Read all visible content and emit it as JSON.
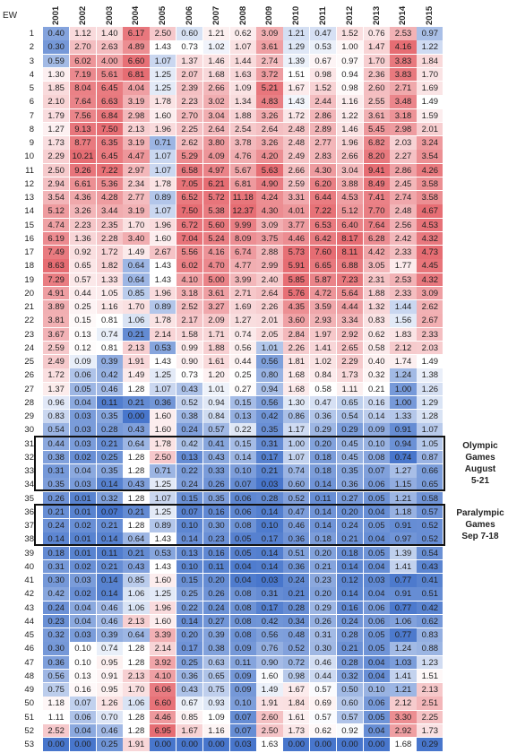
{
  "chart_data": {
    "type": "heatmap",
    "row_header": "EW",
    "columns": [
      "2001",
      "2002",
      "2003",
      "2004",
      "2005",
      "2006",
      "2007",
      "2008",
      "2009",
      "2010",
      "2011",
      "2012",
      "2013",
      "2014",
      "2015"
    ],
    "rows": [
      "1",
      "2",
      "3",
      "4",
      "5",
      "6",
      "7",
      "8",
      "9",
      "10",
      "11",
      "12",
      "13",
      "14",
      "15",
      "16",
      "17",
      "18",
      "19",
      "20",
      "21",
      "22",
      "23",
      "24",
      "25",
      "26",
      "27",
      "28",
      "29",
      "30",
      "31",
      "32",
      "33",
      "34",
      "35",
      "36",
      "37",
      "38",
      "39",
      "40",
      "41",
      "42",
      "43",
      "44",
      "45",
      "46",
      "47",
      "48",
      "49",
      "50",
      "51",
      "52",
      "53"
    ],
    "values": [
      [
        0.4,
        1.12,
        1.4,
        6.17,
        2.5,
        0.6,
        1.21,
        0.62,
        3.09,
        1.21,
        0.47,
        1.52,
        0.76,
        2.53,
        0.97
      ],
      [
        0.3,
        2.7,
        2.63,
        4.89,
        1.43,
        0.73,
        1.02,
        1.07,
        3.61,
        1.29,
        0.53,
        1.0,
        1.47,
        4.16,
        1.22
      ],
      [
        0.59,
        6.02,
        4.0,
        6.6,
        1.07,
        1.37,
        1.46,
        1.44,
        2.74,
        1.39,
        0.67,
        0.97,
        1.7,
        3.83,
        1.84
      ],
      [
        1.3,
        7.19,
        5.61,
        6.81,
        1.25,
        2.07,
        1.68,
        1.63,
        3.72,
        1.51,
        0.98,
        0.94,
        2.36,
        3.83,
        1.7
      ],
      [
        1.85,
        8.04,
        6.45,
        4.04,
        1.25,
        2.39,
        2.66,
        1.09,
        5.21,
        1.67,
        1.52,
        0.98,
        2.6,
        2.71,
        1.69
      ],
      [
        2.1,
        7.64,
        6.63,
        3.19,
        1.78,
        2.23,
        3.02,
        1.34,
        4.83,
        1.43,
        2.44,
        1.16,
        2.55,
        3.48,
        1.49
      ],
      [
        1.79,
        7.56,
        6.84,
        2.98,
        1.6,
        2.7,
        3.04,
        1.88,
        3.26,
        1.72,
        2.86,
        1.22,
        3.61,
        3.18,
        1.59
      ],
      [
        1.27,
        9.13,
        7.5,
        2.13,
        1.96,
        2.25,
        2.64,
        2.54,
        2.64,
        2.48,
        2.89,
        1.46,
        5.45,
        2.98,
        2.01
      ],
      [
        1.73,
        8.77,
        6.35,
        3.19,
        0.71,
        2.62,
        3.8,
        3.78,
        3.26,
        2.48,
        2.77,
        1.96,
        6.82,
        2.03,
        3.24
      ],
      [
        2.29,
        10.21,
        6.45,
        4.47,
        1.07,
        5.29,
        4.09,
        4.76,
        4.2,
        2.49,
        2.83,
        2.66,
        8.2,
        2.27,
        3.54
      ],
      [
        2.5,
        9.26,
        7.22,
        2.97,
        1.07,
        6.58,
        4.97,
        5.67,
        5.63,
        2.66,
        4.3,
        3.04,
        9.41,
        2.86,
        4.26
      ],
      [
        2.94,
        6.61,
        5.36,
        2.34,
        1.78,
        7.05,
        6.21,
        6.81,
        4.9,
        2.59,
        6.2,
        3.88,
        8.49,
        2.45,
        3.58
      ],
      [
        3.54,
        4.36,
        4.28,
        2.77,
        0.89,
        6.52,
        5.72,
        11.18,
        4.24,
        3.31,
        6.44,
        4.53,
        7.41,
        2.74,
        3.58
      ],
      [
        5.12,
        3.26,
        3.44,
        3.19,
        1.07,
        7.5,
        5.38,
        12.37,
        4.3,
        4.01,
        7.22,
        5.12,
        7.7,
        2.48,
        4.67
      ],
      [
        4.74,
        2.23,
        2.35,
        1.7,
        1.96,
        6.72,
        5.6,
        9.99,
        3.09,
        3.77,
        6.53,
        6.4,
        7.64,
        2.56,
        4.53
      ],
      [
        6.19,
        1.36,
        2.28,
        3.4,
        1.6,
        7.04,
        5.24,
        8.09,
        3.75,
        4.46,
        6.42,
        8.17,
        6.28,
        2.42,
        4.32
      ],
      [
        7.49,
        0.92,
        1.72,
        1.49,
        2.67,
        5.56,
        4.16,
        6.74,
        2.88,
        5.73,
        7.6,
        8.11,
        4.42,
        2.33,
        4.73
      ],
      [
        8.63,
        0.65,
        1.82,
        0.64,
        1.43,
        6.02,
        4.7,
        4.77,
        2.99,
        5.91,
        6.65,
        6.88,
        3.05,
        1.77,
        4.45
      ],
      [
        7.29,
        0.57,
        1.33,
        0.64,
        1.43,
        4.1,
        5.0,
        3.99,
        2.4,
        5.85,
        5.87,
        7.23,
        2.31,
        2.53,
        4.32
      ],
      [
        4.91,
        0.44,
        1.05,
        0.85,
        1.96,
        3.18,
        3.61,
        2.71,
        2.64,
        5.76,
        4.72,
        5.64,
        1.88,
        2.33,
        3.09
      ],
      [
        3.89,
        0.25,
        1.16,
        1.7,
        0.89,
        2.52,
        3.27,
        1.69,
        2.26,
        4.35,
        3.59,
        4.44,
        1.32,
        1.44,
        2.62
      ],
      [
        3.81,
        0.15,
        0.81,
        1.06,
        1.78,
        2.17,
        2.09,
        1.27,
        2.01,
        3.6,
        2.93,
        3.34,
        0.83,
        1.56,
        2.67
      ],
      [
        3.67,
        0.13,
        0.74,
        0.21,
        2.14,
        1.58,
        1.71,
        0.74,
        2.05,
        2.84,
        1.97,
        2.92,
        0.62,
        1.83,
        2.33
      ],
      [
        2.59,
        0.12,
        0.81,
        2.13,
        0.53,
        0.99,
        1.88,
        0.56,
        1.01,
        2.26,
        1.41,
        2.65,
        0.58,
        2.12,
        2.03
      ],
      [
        2.49,
        0.09,
        0.39,
        1.91,
        1.43,
        0.9,
        1.61,
        0.44,
        0.56,
        1.81,
        1.02,
        2.29,
        0.4,
        1.74,
        1.49
      ],
      [
        1.72,
        0.06,
        0.42,
        1.49,
        1.25,
        0.73,
        1.2,
        0.25,
        0.8,
        1.68,
        0.84,
        1.73,
        0.32,
        1.24,
        1.38
      ],
      [
        1.37,
        0.05,
        0.46,
        1.28,
        1.07,
        0.43,
        1.01,
        0.27,
        0.94,
        1.68,
        0.58,
        1.11,
        0.21,
        1.0,
        1.26
      ],
      [
        0.96,
        0.04,
        0.11,
        0.21,
        0.36,
        0.52,
        0.94,
        0.15,
        0.56,
        1.3,
        0.47,
        0.65,
        0.16,
        1.0,
        1.29
      ],
      [
        0.83,
        0.03,
        0.35,
        0.0,
        1.6,
        0.38,
        0.84,
        0.13,
        0.42,
        0.86,
        0.36,
        0.54,
        0.14,
        1.33,
        1.28
      ],
      [
        0.54,
        0.03,
        0.28,
        0.43,
        1.6,
        0.24,
        0.57,
        0.22,
        0.35,
        1.17,
        0.29,
        0.29,
        0.09,
        0.91,
        1.07
      ],
      [
        0.44,
        0.03,
        0.21,
        0.64,
        1.78,
        0.42,
        0.41,
        0.15,
        0.31,
        1.0,
        0.2,
        0.45,
        0.1,
        0.94,
        1.05
      ],
      [
        0.38,
        0.02,
        0.25,
        1.28,
        2.5,
        0.13,
        0.43,
        0.14,
        0.17,
        1.07,
        0.18,
        0.45,
        0.08,
        0.74,
        0.87
      ],
      [
        0.31,
        0.04,
        0.35,
        1.28,
        0.71,
        0.22,
        0.33,
        0.1,
        0.21,
        0.74,
        0.18,
        0.35,
        0.07,
        1.27,
        0.66
      ],
      [
        0.35,
        0.03,
        0.14,
        0.43,
        1.25,
        0.24,
        0.26,
        0.07,
        0.03,
        0.6,
        0.14,
        0.36,
        0.06,
        1.15,
        0.65
      ],
      [
        0.26,
        0.01,
        0.32,
        1.28,
        1.07,
        0.15,
        0.35,
        0.06,
        0.28,
        0.52,
        0.11,
        0.27,
        0.05,
        1.21,
        0.58
      ],
      [
        0.21,
        0.01,
        0.07,
        0.21,
        1.25,
        0.07,
        0.16,
        0.06,
        0.14,
        0.47,
        0.14,
        0.2,
        0.04,
        1.18,
        0.57
      ],
      [
        0.24,
        0.02,
        0.21,
        1.28,
        0.89,
        0.1,
        0.3,
        0.08,
        0.1,
        0.46,
        0.14,
        0.24,
        0.05,
        0.91,
        0.52
      ],
      [
        0.14,
        0.01,
        0.14,
        0.64,
        1.43,
        0.14,
        0.23,
        0.05,
        0.17,
        0.36,
        0.18,
        0.21,
        0.04,
        0.97,
        0.52
      ],
      [
        0.18,
        0.01,
        0.11,
        0.21,
        0.53,
        0.13,
        0.16,
        0.05,
        0.14,
        0.51,
        0.2,
        0.18,
        0.05,
        1.39,
        0.54
      ],
      [
        0.31,
        0.02,
        0.21,
        0.43,
        1.43,
        0.1,
        0.11,
        0.04,
        0.14,
        0.36,
        0.21,
        0.14,
        0.04,
        1.41,
        0.43
      ],
      [
        0.3,
        0.03,
        0.14,
        0.85,
        1.6,
        0.15,
        0.2,
        0.04,
        0.03,
        0.24,
        0.23,
        0.12,
        0.03,
        0.77,
        0.41
      ],
      [
        0.42,
        0.02,
        0.14,
        1.06,
        1.25,
        0.25,
        0.26,
        0.08,
        0.31,
        0.21,
        0.2,
        0.14,
        0.04,
        0.91,
        0.51
      ],
      [
        0.24,
        0.04,
        0.46,
        1.06,
        1.96,
        0.22,
        0.24,
        0.08,
        0.17,
        0.28,
        0.29,
        0.16,
        0.06,
        0.77,
        0.42
      ],
      [
        0.23,
        0.04,
        0.46,
        2.13,
        1.6,
        0.14,
        0.27,
        0.08,
        0.42,
        0.34,
        0.26,
        0.24,
        0.06,
        1.06,
        0.62
      ],
      [
        0.32,
        0.03,
        0.39,
        0.64,
        3.39,
        0.2,
        0.39,
        0.08,
        0.56,
        0.48,
        0.31,
        0.28,
        0.05,
        0.77,
        0.83
      ],
      [
        0.3,
        0.1,
        0.74,
        1.28,
        2.14,
        0.17,
        0.38,
        0.09,
        0.76,
        0.52,
        0.3,
        0.21,
        0.05,
        1.24,
        0.88
      ],
      [
        0.36,
        0.1,
        0.95,
        1.28,
        3.92,
        0.25,
        0.63,
        0.11,
        0.9,
        0.72,
        0.46,
        0.28,
        0.04,
        1.03,
        1.23
      ],
      [
        0.56,
        0.13,
        0.91,
        2.13,
        4.1,
        0.36,
        0.65,
        0.09,
        1.6,
        0.98,
        0.44,
        0.32,
        0.04,
        1.41,
        1.51
      ],
      [
        0.75,
        0.16,
        0.95,
        1.7,
        6.06,
        0.43,
        0.75,
        0.09,
        1.49,
        1.67,
        0.57,
        0.5,
        0.1,
        1.21,
        2.13
      ],
      [
        1.18,
        0.07,
        1.26,
        1.06,
        6.6,
        0.67,
        0.93,
        0.1,
        1.91,
        1.84,
        0.69,
        0.6,
        0.06,
        2.12,
        2.51
      ],
      [
        1.11,
        0.06,
        0.7,
        1.28,
        4.46,
        0.85,
        1.09,
        0.07,
        2.6,
        1.61,
        0.57,
        0.57,
        0.05,
        3.3,
        2.25
      ],
      [
        2.52,
        0.04,
        0.46,
        1.28,
        6.95,
        1.67,
        1.16,
        0.07,
        2.5,
        1.73,
        0.62,
        0.92,
        0.04,
        2.92,
        1.73
      ],
      [
        0.0,
        0.0,
        0.25,
        1.91,
        0.0,
        0.0,
        0.0,
        0.03,
        1.63,
        0.0,
        0.0,
        0.0,
        0.0,
        1.68,
        0.29
      ]
    ],
    "event_groups": [
      {
        "rows": [
          "31",
          "34"
        ],
        "label_lines": [
          "Olympic",
          "Games",
          "August",
          "5-21"
        ]
      },
      {
        "rows": [
          "36",
          "38"
        ],
        "label_lines": [
          "Paralympic",
          "Games",
          "Sep 7-18"
        ]
      }
    ],
    "color_scale": {
      "low": "#3e6fc9",
      "mid": "#ffffff",
      "high": "#e2535a"
    },
    "grid": false,
    "legend": "none"
  }
}
